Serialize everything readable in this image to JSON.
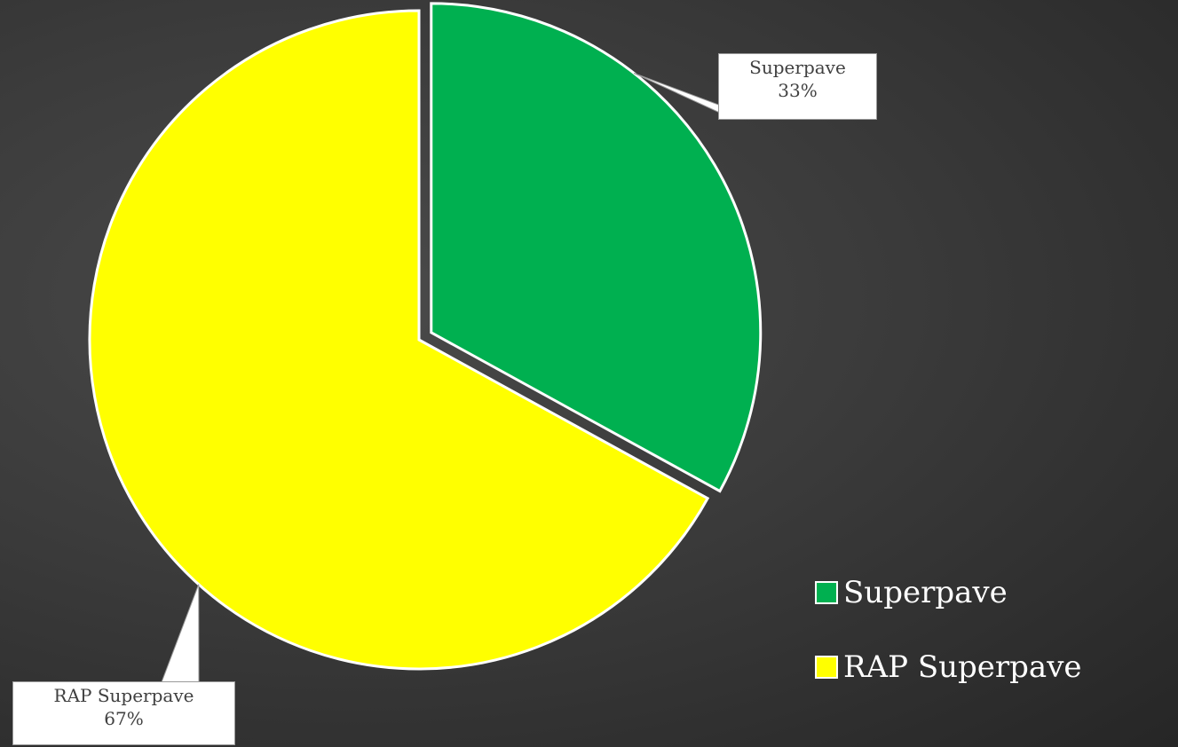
{
  "chart_data": {
    "type": "pie",
    "series": [
      {
        "slices": [
          {
            "label": "Superpave",
            "value": 33,
            "value_label": "33%",
            "color": "#00b050",
            "exploded": true
          },
          {
            "label": "RAP Superpave",
            "value": 67,
            "value_label": "67%",
            "color": "#ffff00",
            "exploded": false
          }
        ]
      }
    ],
    "title": "",
    "legend": {
      "position": "bottom-right",
      "entries": [
        "Superpave",
        "RAP Superpave"
      ]
    },
    "data_labels": "callout",
    "start_angle": "12 o'clock",
    "direction": "clockwise",
    "slice_border_color": "#ffffff"
  },
  "colors": {
    "background": "#3b3b3b",
    "legend_text": "#ffffff",
    "callout_text": "#404040",
    "callout_fill": "#ffffff",
    "callout_border": "#9a9a9a"
  }
}
